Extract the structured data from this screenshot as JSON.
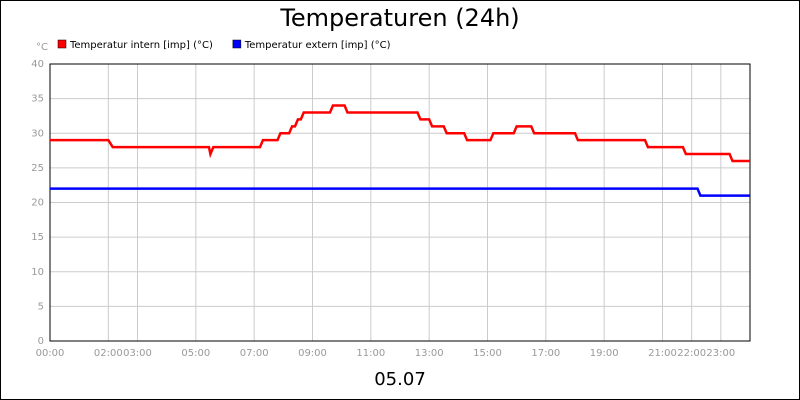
{
  "chart_data": {
    "type": "line",
    "title": "Temperaturen (24h)",
    "y_label": "°C",
    "x_label": "05.07",
    "xlim": [
      0,
      24
    ],
    "ylim": [
      0,
      40
    ],
    "yticks": [
      0,
      5,
      10,
      15,
      20,
      25,
      30,
      35,
      40
    ],
    "xticks": [
      {
        "value": 0,
        "label": "00:00"
      },
      {
        "value": 2,
        "label": "02:00"
      },
      {
        "value": 3,
        "label": "03:00"
      },
      {
        "value": 5,
        "label": "05:00"
      },
      {
        "value": 7,
        "label": "07:00"
      },
      {
        "value": 9,
        "label": "09:00"
      },
      {
        "value": 11,
        "label": "11:00"
      },
      {
        "value": 13,
        "label": "13:00"
      },
      {
        "value": 15,
        "label": "15:00"
      },
      {
        "value": 17,
        "label": "17:00"
      },
      {
        "value": 19,
        "label": "19:00"
      },
      {
        "value": 21,
        "label": "21:00"
      },
      {
        "value": 22,
        "label": "22:00"
      },
      {
        "value": 23,
        "label": "23:00"
      }
    ],
    "grid": true,
    "series": [
      {
        "name": "Temperatur intern [imp] (°C)",
        "color": "#ff0000",
        "x": [
          0,
          2.0,
          2.15,
          5.45,
          5.5,
          5.6,
          7.2,
          7.3,
          7.8,
          7.9,
          8.2,
          8.3,
          8.4,
          8.5,
          8.6,
          8.7,
          9.6,
          9.7,
          10.1,
          10.2,
          12.6,
          12.7,
          13.0,
          13.1,
          13.5,
          13.6,
          14.2,
          14.3,
          15.1,
          15.2,
          15.9,
          16.0,
          16.5,
          16.6,
          18.0,
          18.1,
          20.4,
          20.5,
          21.7,
          21.8,
          23.3,
          23.4,
          24
        ],
        "values": [
          29,
          29,
          28,
          28,
          27,
          28,
          28,
          29,
          29,
          30,
          30,
          31,
          31,
          32,
          32,
          33,
          33,
          34,
          34,
          33,
          33,
          32,
          32,
          31,
          31,
          30,
          30,
          29,
          29,
          30,
          30,
          31,
          31,
          30,
          30,
          29,
          29,
          28,
          28,
          27,
          27,
          26,
          26
        ]
      },
      {
        "name": "Temperatur extern [imp] (°C)",
        "color": "#0000ff",
        "x": [
          0,
          22.2,
          22.3,
          24
        ],
        "values": [
          22,
          22,
          21,
          21
        ]
      }
    ]
  }
}
